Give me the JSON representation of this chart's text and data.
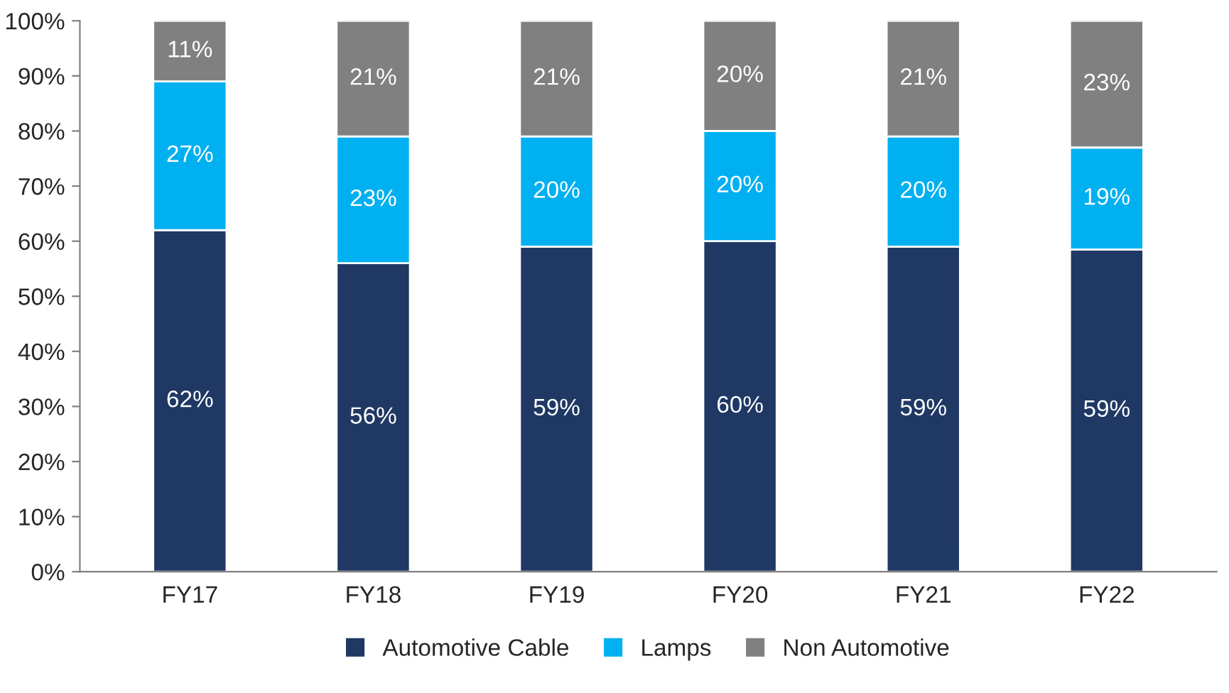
{
  "chart_data": {
    "type": "bar",
    "stacked": true,
    "categories": [
      "FY17",
      "FY18",
      "FY19",
      "FY20",
      "FY21",
      "FY22"
    ],
    "series": [
      {
        "name": "Automotive Cable",
        "color": "#1f3864",
        "values": [
          62,
          56,
          59,
          60,
          59,
          58.5
        ],
        "value_labels": [
          "62%",
          "56%",
          "59%",
          "60%",
          "59%",
          "59%"
        ]
      },
      {
        "name": "Lamps",
        "color": "#00b0f0",
        "values": [
          27,
          23,
          20,
          20,
          20,
          18.5
        ],
        "value_labels": [
          "27%",
          "23%",
          "20%",
          "20%",
          "20%",
          "19%"
        ]
      },
      {
        "name": "Non Automotive",
        "color": "#808080",
        "values": [
          11,
          21,
          21,
          20,
          21,
          23
        ],
        "value_labels": [
          "11%",
          "21%",
          "21%",
          "20%",
          "21%",
          "23%"
        ]
      }
    ],
    "ylim": [
      0,
      100
    ],
    "yticks": [
      {
        "value": 0,
        "label": "0%"
      },
      {
        "value": 10,
        "label": "10%"
      },
      {
        "value": 20,
        "label": "20%"
      },
      {
        "value": 30,
        "label": "30%"
      },
      {
        "value": 40,
        "label": "40%"
      },
      {
        "value": 50,
        "label": "50%"
      },
      {
        "value": 60,
        "label": "60%"
      },
      {
        "value": 70,
        "label": "70%"
      },
      {
        "value": 80,
        "label": "80%"
      },
      {
        "value": 90,
        "label": "90%"
      },
      {
        "value": 100,
        "label": "100%"
      }
    ],
    "grid": false,
    "legend": "bottom"
  }
}
